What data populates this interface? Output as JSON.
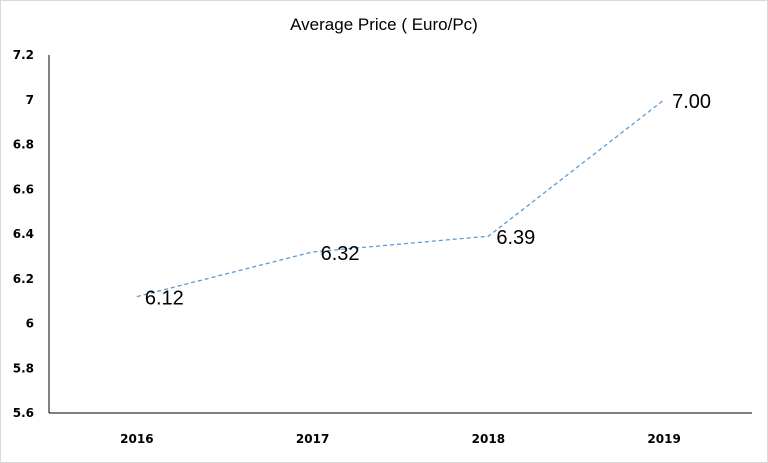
{
  "chart_data": {
    "type": "line",
    "title": "Average Price ( Euro/Pc)",
    "xlabel": "",
    "ylabel": "",
    "categories": [
      "2016",
      "2017",
      "2018",
      "2019"
    ],
    "values": [
      6.12,
      6.32,
      6.39,
      7.0
    ],
    "data_labels": [
      "6.12",
      "6.32",
      "6.39",
      "7.00"
    ],
    "ylim": [
      5.6,
      7.2
    ],
    "yticks": [
      "5.6",
      "5.8",
      "6",
      "6.2",
      "6.4",
      "6.6",
      "6.8",
      "7",
      "7.2"
    ],
    "grid": false,
    "line_style": "dashed",
    "line_color": "#5b9bd5"
  }
}
